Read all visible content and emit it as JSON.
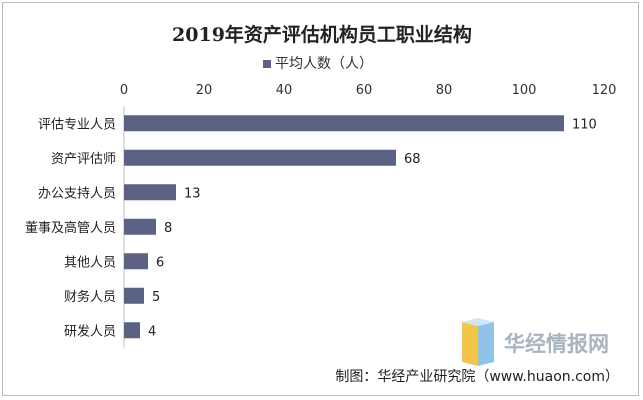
{
  "chart_data": {
    "type": "bar",
    "orientation": "horizontal",
    "title": "2019年资产评估机构员工职业结构",
    "categories": [
      "评估专业人员",
      "资产评估师",
      "办公支持人员",
      "董事及高管人员",
      "其他人员",
      "财务人员",
      "研发人员"
    ],
    "series": [
      {
        "name": "平均人数（人）",
        "values": [
          110,
          68,
          13,
          8,
          6,
          5,
          4
        ],
        "color": "#5b6283"
      }
    ],
    "xticks": [
      "0",
      "20",
      "40",
      "60",
      "80",
      "100",
      "120"
    ],
    "xlim": [
      0,
      120
    ],
    "xaxis_position": "top",
    "legend_position": "top",
    "grid": false,
    "data_labels": true
  },
  "watermark": {
    "text": "华经情报网",
    "icon": "huaon-logo-icon"
  },
  "source": "制图：华经产业研究院（www.huaon.com）"
}
